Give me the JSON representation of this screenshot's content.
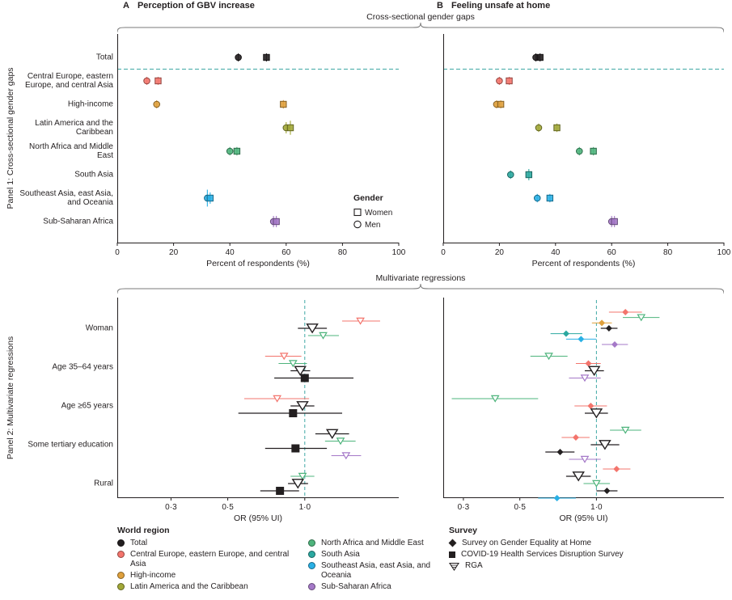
{
  "figure": {
    "panel_a_label": "A",
    "panel_a_title": "Perception of GBV increase",
    "panel_b_label": "B",
    "panel_b_title": "Feeling unsafe at home",
    "top_section_title": "Cross-sectional gender gaps",
    "bottom_section_title": "Multivariate regressions",
    "panel1_side_label": "Panel 1: Cross-sectional gender gaps",
    "panel2_side_label": "Panel 2: Multivariate regressions"
  },
  "colors": {
    "total": "#231f20",
    "ceeca": "#f3746c",
    "hi": "#dfa03c",
    "lac": "#a2a838",
    "name": "#4eb47c",
    "sa": "#2ba8a0",
    "seao": "#29b0e5",
    "ssa": "#a579c8",
    "reference_line": "#3fa8a5",
    "axis": "#231f20"
  },
  "gender_legend": {
    "title": "Gender",
    "items": [
      {
        "label": "Women",
        "marker": "square"
      },
      {
        "label": "Men",
        "marker": "circle"
      }
    ]
  },
  "chart_data": [
    {
      "id": "top-a",
      "type": "scatter",
      "panel": "A",
      "title": "Perception of GBV increase",
      "xlabel": "Percent of respondents (%)",
      "xlim": [
        0,
        100
      ],
      "xticks": [
        0,
        20,
        40,
        60,
        80,
        100
      ],
      "divider_after_index": 0,
      "has_gender_legend": true,
      "categories": [
        "Total",
        "Central Europe, eastern Europe, and central Asia",
        "High-income",
        "Latin America and the Caribbean",
        "North Africa and Middle East",
        "South Asia",
        "Southeast Asia, east Asia, and Oceania",
        "Sub-Saharan Africa"
      ],
      "points": [
        {
          "category": "Total",
          "region": "total",
          "gender": "Men",
          "value": 43,
          "err": 1
        },
        {
          "category": "Total",
          "region": "total",
          "gender": "Women",
          "value": 53,
          "err": 1
        },
        {
          "category": "Central Europe, eastern Europe, and central Asia",
          "region": "ceeca",
          "gender": "Men",
          "value": 10.5,
          "err": 1
        },
        {
          "category": "Central Europe, eastern Europe, and central Asia",
          "region": "ceeca",
          "gender": "Women",
          "value": 14.5,
          "err": 1
        },
        {
          "category": "High-income",
          "region": "hi",
          "gender": "Men",
          "value": 14,
          "err": 1
        },
        {
          "category": "High-income",
          "region": "hi",
          "gender": "Women",
          "value": 59,
          "err": 1.5
        },
        {
          "category": "Latin America and the Caribbean",
          "region": "lac",
          "gender": "Men",
          "value": 60,
          "err": 2
        },
        {
          "category": "Latin America and the Caribbean",
          "region": "lac",
          "gender": "Women",
          "value": 61.5,
          "err": 2.5
        },
        {
          "category": "North Africa and Middle East",
          "region": "name",
          "gender": "Men",
          "value": 40,
          "err": 1.5
        },
        {
          "category": "North Africa and Middle East",
          "region": "name",
          "gender": "Women",
          "value": 42.5,
          "err": 1.5
        },
        {
          "category": "Southeast Asia, east Asia, and Oceania",
          "region": "seao",
          "gender": "Men",
          "value": 32,
          "err": 3
        },
        {
          "category": "Southeast Asia, east Asia, and Oceania",
          "region": "seao",
          "gender": "Women",
          "value": 33,
          "err": 2
        },
        {
          "category": "Sub-Saharan Africa",
          "region": "ssa",
          "gender": "Men",
          "value": 55.5,
          "err": 2
        },
        {
          "category": "Sub-Saharan Africa",
          "region": "ssa",
          "gender": "Women",
          "value": 56.5,
          "err": 2
        }
      ]
    },
    {
      "id": "top-b",
      "type": "scatter",
      "panel": "B",
      "title": "Feeling unsafe at home",
      "xlabel": "Percent of respondents (%)",
      "xlim": [
        0,
        100
      ],
      "xticks": [
        0,
        20,
        40,
        60,
        80,
        100
      ],
      "divider_after_index": 0,
      "has_gender_legend": false,
      "categories": [
        "Total",
        "Central Europe, eastern Europe, and central Asia",
        "High-income",
        "Latin America and the Caribbean",
        "North Africa and Middle East",
        "South Asia",
        "Southeast Asia, east Asia, and Oceania",
        "Sub-Saharan Africa"
      ],
      "points": [
        {
          "category": "Total",
          "region": "total",
          "gender": "Men",
          "value": 33,
          "err": 1
        },
        {
          "category": "Total",
          "region": "total",
          "gender": "Women",
          "value": 34.5,
          "err": 1
        },
        {
          "category": "Central Europe, eastern Europe, and central Asia",
          "region": "ceeca",
          "gender": "Men",
          "value": 20,
          "err": 1
        },
        {
          "category": "Central Europe, eastern Europe, and central Asia",
          "region": "ceeca",
          "gender": "Women",
          "value": 23.5,
          "err": 1
        },
        {
          "category": "High-income",
          "region": "hi",
          "gender": "Men",
          "value": 19,
          "err": 1
        },
        {
          "category": "High-income",
          "region": "hi",
          "gender": "Women",
          "value": 20.5,
          "err": 1
        },
        {
          "category": "Latin America and the Caribbean",
          "region": "lac",
          "gender": "Men",
          "value": 34,
          "err": 1.5
        },
        {
          "category": "Latin America and the Caribbean",
          "region": "lac",
          "gender": "Women",
          "value": 40.5,
          "err": 1.5
        },
        {
          "category": "North Africa and Middle East",
          "region": "name",
          "gender": "Men",
          "value": 48.5,
          "err": 1.5
        },
        {
          "category": "North Africa and Middle East",
          "region": "name",
          "gender": "Women",
          "value": 53.5,
          "err": 1.5
        },
        {
          "category": "South Asia",
          "region": "sa",
          "gender": "Men",
          "value": 24,
          "err": 1.5
        },
        {
          "category": "South Asia",
          "region": "sa",
          "gender": "Women",
          "value": 30.5,
          "err": 2
        },
        {
          "category": "Southeast Asia, east Asia, and Oceania",
          "region": "seao",
          "gender": "Men",
          "value": 33.5,
          "err": 1.5
        },
        {
          "category": "Southeast Asia, east Asia, and Oceania",
          "region": "seao",
          "gender": "Women",
          "value": 38,
          "err": 1.5
        },
        {
          "category": "Sub-Saharan Africa",
          "region": "ssa",
          "gender": "Men",
          "value": 60,
          "err": 2
        },
        {
          "category": "Sub-Saharan Africa",
          "region": "ssa",
          "gender": "Women",
          "value": 61,
          "err": 2
        }
      ]
    },
    {
      "id": "bottom-a",
      "type": "forest",
      "panel": "A",
      "title": "Perception of GBV increase",
      "xlabel": "OR (95% UI)",
      "xscale": "log",
      "xlim": [
        0.185,
        2.33
      ],
      "xticks": [
        0.3,
        0.5,
        1.0
      ],
      "xtick_labels": [
        "0·3",
        "0·5",
        "1·0"
      ],
      "ref_line": 1.0,
      "categories": [
        "Woman",
        "Age 35–64 years",
        "Age ≥65 years",
        "Some tertiary education",
        "Rural"
      ],
      "points": [
        {
          "category": "Woman",
          "region": "ceeca",
          "survey": "rga",
          "or": 1.65,
          "lo": 1.4,
          "hi": 1.97
        },
        {
          "category": "Woman",
          "region": "total",
          "survey": "rga",
          "or": 1.07,
          "lo": 0.94,
          "hi": 1.22
        },
        {
          "category": "Woman",
          "region": "name",
          "survey": "rga",
          "or": 1.18,
          "lo": 1.03,
          "hi": 1.36
        },
        {
          "category": "Age 35–64 years",
          "region": "ceeca",
          "survey": "rga",
          "or": 0.83,
          "lo": 0.7,
          "hi": 0.97
        },
        {
          "category": "Age 35–64 years",
          "region": "name",
          "survey": "rga",
          "or": 0.9,
          "lo": 0.79,
          "hi": 1.02
        },
        {
          "category": "Age 35–64 years",
          "region": "total",
          "survey": "rga",
          "or": 0.96,
          "lo": 0.88,
          "hi": 1.05
        },
        {
          "category": "Age 35–64 years",
          "region": "total",
          "survey": "covid",
          "or": 1.0,
          "lo": 0.76,
          "hi": 1.55
        },
        {
          "category": "Age ≥65 years",
          "region": "ceeca",
          "survey": "rga",
          "or": 0.78,
          "lo": 0.58,
          "hi": 1.04
        },
        {
          "category": "Age ≥65 years",
          "region": "total",
          "survey": "rga",
          "or": 0.98,
          "lo": 0.88,
          "hi": 1.09
        },
        {
          "category": "Age ≥65 years",
          "region": "total",
          "survey": "covid",
          "or": 0.9,
          "lo": 0.55,
          "hi": 1.4
        },
        {
          "category": "Some tertiary education",
          "region": "total",
          "survey": "rga",
          "or": 1.28,
          "lo": 1.1,
          "hi": 1.49
        },
        {
          "category": "Some tertiary education",
          "region": "name",
          "survey": "rga",
          "or": 1.38,
          "lo": 1.2,
          "hi": 1.58
        },
        {
          "category": "Some tertiary education",
          "region": "total",
          "survey": "covid",
          "or": 0.92,
          "lo": 0.7,
          "hi": 1.22
        },
        {
          "category": "Some tertiary education",
          "region": "ssa",
          "survey": "rga",
          "or": 1.45,
          "lo": 1.27,
          "hi": 1.66
        },
        {
          "category": "Rural",
          "region": "name",
          "survey": "rga",
          "or": 0.98,
          "lo": 0.88,
          "hi": 1.09
        },
        {
          "category": "Rural",
          "region": "total",
          "survey": "rga",
          "or": 0.94,
          "lo": 0.86,
          "hi": 1.03
        },
        {
          "category": "Rural",
          "region": "total",
          "survey": "covid",
          "or": 0.8,
          "lo": 0.67,
          "hi": 0.95
        }
      ]
    },
    {
      "id": "bottom-b",
      "type": "forest",
      "panel": "B",
      "title": "Feeling unsafe at home",
      "xlabel": "OR (95% UI)",
      "xscale": "log",
      "xlim": [
        0.25,
        3.17
      ],
      "xticks": [
        0.3,
        0.5,
        1.0
      ],
      "xtick_labels": [
        "0·3",
        "0·5",
        "1·0"
      ],
      "ref_line": 1.0,
      "categories": [
        "Woman",
        "Age 35–64 years",
        "Age ≥65 years",
        "Some tertiary education",
        "Rural"
      ],
      "points": [
        {
          "category": "Woman",
          "region": "ceeca",
          "survey": "sge",
          "or": 1.3,
          "lo": 1.12,
          "hi": 1.51
        },
        {
          "category": "Woman",
          "region": "name",
          "survey": "rga",
          "or": 1.5,
          "lo": 1.27,
          "hi": 1.77
        },
        {
          "category": "Woman",
          "region": "hi",
          "survey": "sge",
          "or": 1.05,
          "lo": 0.96,
          "hi": 1.15
        },
        {
          "category": "Woman",
          "region": "total",
          "survey": "sge",
          "or": 1.12,
          "lo": 1.04,
          "hi": 1.21
        },
        {
          "category": "Woman",
          "region": "sa",
          "survey": "sge",
          "or": 0.76,
          "lo": 0.66,
          "hi": 0.88
        },
        {
          "category": "Woman",
          "region": "seao",
          "survey": "sge",
          "or": 0.87,
          "lo": 0.76,
          "hi": 1.0
        },
        {
          "category": "Woman",
          "region": "ssa",
          "survey": "sge",
          "or": 1.18,
          "lo": 1.05,
          "hi": 1.33
        },
        {
          "category": "Age 35–64 years",
          "region": "name",
          "survey": "rga",
          "or": 0.65,
          "lo": 0.55,
          "hi": 0.77
        },
        {
          "category": "Age 35–64 years",
          "region": "ceeca",
          "survey": "sge",
          "or": 0.93,
          "lo": 0.83,
          "hi": 1.04
        },
        {
          "category": "Age 35–64 years",
          "region": "total",
          "survey": "rga",
          "or": 0.98,
          "lo": 0.9,
          "hi": 1.07
        },
        {
          "category": "Age 35–64 years",
          "region": "ssa",
          "survey": "rga",
          "or": 0.9,
          "lo": 0.78,
          "hi": 1.04
        },
        {
          "category": "Age ≥65 years",
          "region": "name",
          "survey": "rga",
          "or": 0.4,
          "lo": 0.27,
          "hi": 0.59
        },
        {
          "category": "Age ≥65 years",
          "region": "ceeca",
          "survey": "sge",
          "or": 0.95,
          "lo": 0.82,
          "hi": 1.1
        },
        {
          "category": "Age ≥65 years",
          "region": "total",
          "survey": "rga",
          "or": 1.0,
          "lo": 0.9,
          "hi": 1.11
        },
        {
          "category": "Some tertiary education",
          "region": "name",
          "survey": "rga",
          "or": 1.3,
          "lo": 1.13,
          "hi": 1.5
        },
        {
          "category": "Some tertiary education",
          "region": "ceeca",
          "survey": "sge",
          "or": 0.83,
          "lo": 0.73,
          "hi": 0.94
        },
        {
          "category": "Some tertiary education",
          "region": "total",
          "survey": "rga",
          "or": 1.08,
          "lo": 0.95,
          "hi": 1.23
        },
        {
          "category": "Some tertiary education",
          "region": "total",
          "survey": "sge",
          "or": 0.72,
          "lo": 0.63,
          "hi": 0.82
        },
        {
          "category": "Some tertiary education",
          "region": "ssa",
          "survey": "rga",
          "or": 0.9,
          "lo": 0.78,
          "hi": 1.04
        },
        {
          "category": "Rural",
          "region": "ceeca",
          "survey": "sge",
          "or": 1.2,
          "lo": 1.06,
          "hi": 1.36
        },
        {
          "category": "Rural",
          "region": "total",
          "survey": "rga",
          "or": 0.85,
          "lo": 0.76,
          "hi": 0.95
        },
        {
          "category": "Rural",
          "region": "name",
          "survey": "rga",
          "or": 1.0,
          "lo": 0.89,
          "hi": 1.13
        },
        {
          "category": "Rural",
          "region": "total",
          "survey": "sge",
          "or": 1.1,
          "lo": 1.0,
          "hi": 1.21
        },
        {
          "category": "Rural",
          "region": "seao",
          "survey": "sge",
          "or": 0.7,
          "lo": 0.59,
          "hi": 0.83
        }
      ]
    }
  ],
  "legend": {
    "world_region_title": "World region",
    "regions": [
      {
        "key": "total",
        "label": "Total"
      },
      {
        "key": "ceeca",
        "label": "Central Europe, eastern Europe, and central Asia"
      },
      {
        "key": "hi",
        "label": "High-income"
      },
      {
        "key": "lac",
        "label": "Latin America and the Caribbean"
      },
      {
        "key": "name",
        "label": "North Africa and Middle East"
      },
      {
        "key": "sa",
        "label": "South Asia"
      },
      {
        "key": "seao",
        "label": "Southeast Asia, east Asia, and Oceania"
      },
      {
        "key": "ssa",
        "label": "Sub-Saharan Africa"
      }
    ],
    "survey_title": "Survey",
    "surveys": [
      {
        "key": "sge",
        "label": "Survey on Gender Equality at Home",
        "marker": "diamond"
      },
      {
        "key": "covid",
        "label": "COVID-19 Health Services Disruption Survey",
        "marker": "square"
      },
      {
        "key": "rga",
        "label": "RGA",
        "marker": "triangle-open"
      }
    ]
  }
}
